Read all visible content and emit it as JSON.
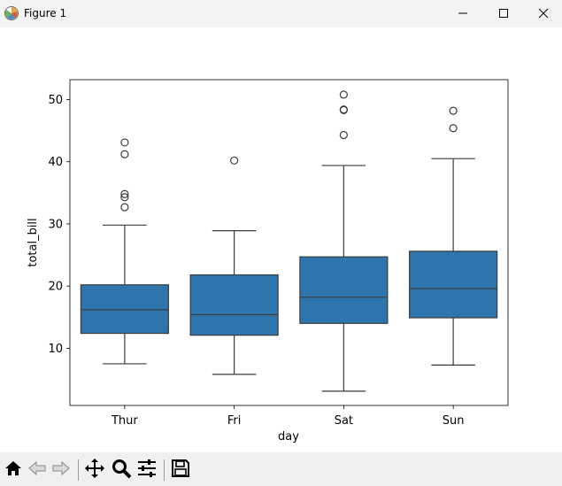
{
  "window": {
    "title": "Figure 1",
    "controls": [
      "minimize",
      "maximize",
      "close"
    ]
  },
  "toolbar": {
    "tools": [
      "home-icon",
      "back-icon",
      "forward-icon",
      "pan-icon",
      "zoom-icon",
      "configure-subplots-icon",
      "save-icon"
    ]
  },
  "chart_data": {
    "type": "box",
    "categories": [
      "Thur",
      "Fri",
      "Sat",
      "Sun"
    ],
    "xlabel": "day",
    "ylabel": "total_bill",
    "ylim": [
      0.8,
      53.2
    ],
    "yticks": [
      10,
      20,
      30,
      40,
      50
    ],
    "color": "#2e75ad",
    "boxes": [
      {
        "category": "Thur",
        "whislo": 7.5,
        "q1": 12.4,
        "median": 16.2,
        "q3": 20.2,
        "whishi": 29.8,
        "fliers": [
          32.7,
          34.3,
          34.8,
          41.2,
          43.1
        ]
      },
      {
        "category": "Fri",
        "whislo": 5.8,
        "q1": 12.1,
        "median": 15.4,
        "q3": 21.8,
        "whishi": 28.9,
        "fliers": [
          40.2
        ]
      },
      {
        "category": "Sat",
        "whislo": 3.1,
        "q1": 14.0,
        "median": 18.2,
        "q3": 24.7,
        "whishi": 39.4,
        "fliers": [
          44.3,
          48.3,
          48.4,
          50.8
        ]
      },
      {
        "category": "Sun",
        "whislo": 7.3,
        "q1": 14.9,
        "median": 19.6,
        "q3": 25.6,
        "whishi": 40.5,
        "fliers": [
          45.4,
          48.2
        ]
      }
    ]
  }
}
